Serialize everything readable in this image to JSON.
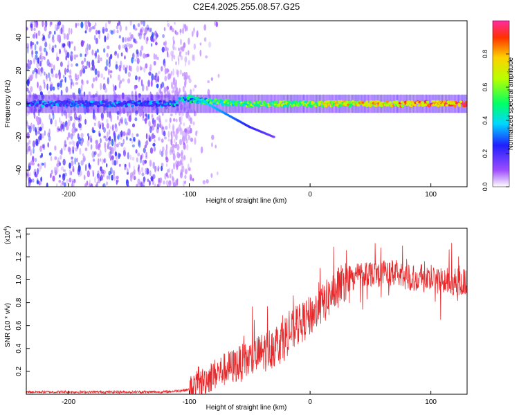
{
  "title": "C2E4.2025.255.08.57.G25",
  "chart_data": [
    {
      "type": "heatmap",
      "xlabel": "Height of straight line (km)",
      "ylabel": "Frequency (Hz)",
      "xlim": [
        -235,
        130
      ],
      "ylim": [
        -50,
        50
      ],
      "xticks": [
        -200,
        -100,
        0,
        100
      ],
      "yticks": [
        -40,
        -20,
        0,
        20,
        40
      ],
      "colorbar": {
        "label": "Normalized spectral amplitude",
        "range": [
          0,
          1
        ],
        "ticks": [
          "0.0",
          "0.2",
          "0.4",
          "0.6",
          "0.8"
        ],
        "tick_values": [
          0,
          0.2,
          0.4,
          0.6,
          0.8
        ]
      },
      "features": {
        "noise_region_x": [
          -235,
          -95
        ],
        "carrier_frequency_hz": 0,
        "carrier_band_start_x": -235,
        "doppler_curve": [
          [
            -100,
            5
          ],
          [
            -90,
            2
          ],
          [
            -80,
            -2
          ],
          [
            -70,
            -6
          ],
          [
            -60,
            -10
          ],
          [
            -50,
            -14
          ],
          [
            -40,
            -17
          ],
          [
            -30,
            -20
          ]
        ]
      }
    },
    {
      "type": "line",
      "xlabel": "Height of straight line (km)",
      "ylabel": "SNR (10 * v/v)",
      "y_scale_label": "(x10",
      "y_scale_exp": "4",
      "xlim": [
        -235,
        130
      ],
      "ylim": [
        0,
        1.45
      ],
      "xticks": [
        -200,
        -100,
        0,
        100
      ],
      "yticks": [
        0.2,
        0.4,
        0.6,
        0.8,
        1.0,
        1.2,
        1.4
      ],
      "ytick_labels": [
        "0.2",
        "0.4",
        "0.6",
        "0.8",
        "1.0",
        "1.2",
        "1.4"
      ],
      "series": [
        {
          "name": "SNR",
          "color": "#e8282a",
          "trend": [
            [
              -235,
              0.02
            ],
            [
              -120,
              0.02
            ],
            [
              -100,
              0.04
            ],
            [
              -90,
              0.1
            ],
            [
              -80,
              0.17
            ],
            [
              -70,
              0.22
            ],
            [
              -60,
              0.26
            ],
            [
              -50,
              0.3
            ],
            [
              -40,
              0.36
            ],
            [
              -30,
              0.42
            ],
            [
              -20,
              0.5
            ],
            [
              -10,
              0.6
            ],
            [
              0,
              0.68
            ],
            [
              10,
              0.78
            ],
            [
              20,
              0.9
            ],
            [
              30,
              1.0
            ],
            [
              40,
              1.05
            ],
            [
              50,
              1.06
            ],
            [
              60,
              1.06
            ],
            [
              70,
              1.05
            ],
            [
              80,
              1.03
            ],
            [
              90,
              1.01
            ],
            [
              100,
              1.0
            ],
            [
              110,
              0.99
            ],
            [
              120,
              0.98
            ],
            [
              130,
              0.98
            ]
          ]
        }
      ]
    }
  ]
}
